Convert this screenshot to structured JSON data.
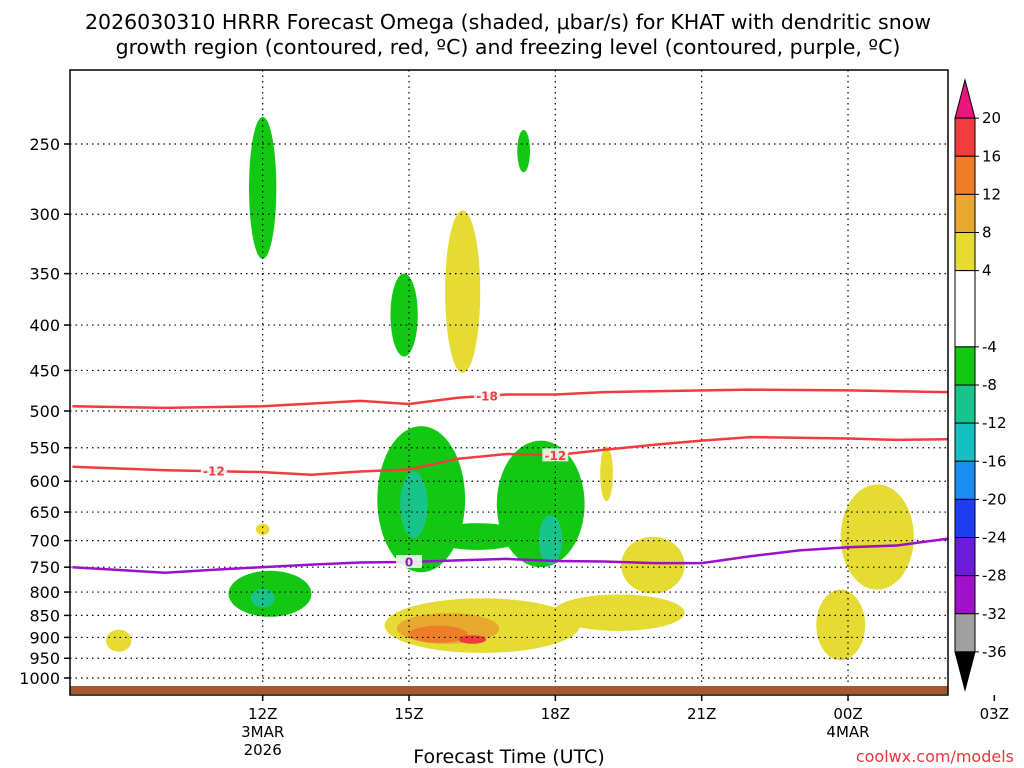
{
  "chart_data": {
    "type": "heatmap",
    "title_line1": "2026030310 HRRR Forecast Omega (shaded, μbar/s) for KHAT with dendritic snow",
    "title_line2": "growth region (contoured, red, ºC) and freezing level (contoured, purple, ºC)",
    "xlabel": "Forecast Time (UTC)",
    "credit": "coolwx.com/models",
    "x_range_hours": [
      -1.95,
      16.05
    ],
    "y_ticks": [
      250,
      300,
      350,
      400,
      450,
      500,
      550,
      600,
      650,
      700,
      750,
      800,
      850,
      900,
      950,
      1000
    ],
    "x_ticks": [
      {
        "hour": 2,
        "label": "12Z",
        "sub1": "3MAR",
        "sub2": "2026"
      },
      {
        "hour": 5,
        "label": "15Z",
        "sub1": "",
        "sub2": ""
      },
      {
        "hour": 8,
        "label": "18Z",
        "sub1": "",
        "sub2": ""
      },
      {
        "hour": 11,
        "label": "21Z",
        "sub1": "",
        "sub2": ""
      },
      {
        "hour": 14,
        "label": "00Z",
        "sub1": "4MAR",
        "sub2": ""
      },
      {
        "hour": 17,
        "label": "03Z",
        "sub1": "",
        "sub2": ""
      }
    ],
    "colorbar": [
      {
        "range": [
          20,
          24
        ],
        "color": "#e8157a"
      },
      {
        "range": [
          16,
          20
        ],
        "color": "#f03c3c"
      },
      {
        "range": [
          12,
          16
        ],
        "color": "#ee7d2a"
      },
      {
        "range": [
          8,
          12
        ],
        "color": "#e8a82e"
      },
      {
        "range": [
          4,
          8
        ],
        "color": "#e6db32"
      },
      {
        "range": [
          -4,
          4
        ],
        "color": "#ffffff"
      },
      {
        "range": [
          -8,
          -4
        ],
        "color": "#12c812"
      },
      {
        "range": [
          -12,
          -8
        ],
        "color": "#19c48c"
      },
      {
        "range": [
          -16,
          -12
        ],
        "color": "#17c0c0"
      },
      {
        "range": [
          -20,
          -16
        ],
        "color": "#1a8ef0"
      },
      {
        "range": [
          -24,
          -20
        ],
        "color": "#1e3cf0"
      },
      {
        "range": [
          -28,
          -24
        ],
        "color": "#6a1cd6"
      },
      {
        "range": [
          -32,
          -28
        ],
        "color": "#a012c8"
      },
      {
        "range": [
          -36,
          -32
        ],
        "color": "#a0a0a0"
      },
      {
        "range": [
          -40,
          -36
        ],
        "color": "#000000"
      }
    ],
    "colorbar_labels": [
      20,
      16,
      12,
      8,
      4,
      -4,
      -8,
      -12,
      -16,
      -20,
      -24,
      -28,
      -32,
      -36
    ],
    "isotherms": [
      {
        "name": "dgz-minus18",
        "label": "-18",
        "color": "#f03c3c",
        "points": [
          [
            -1.9,
            494
          ],
          [
            0,
            496
          ],
          [
            2,
            494
          ],
          [
            4,
            487
          ],
          [
            5,
            491
          ],
          [
            6,
            483
          ],
          [
            7,
            479
          ],
          [
            8,
            479
          ],
          [
            9,
            476
          ],
          [
            10,
            475
          ],
          [
            12,
            473
          ],
          [
            14,
            474
          ],
          [
            16,
            476
          ],
          [
            17,
            475
          ],
          [
            18,
            474
          ]
        ]
      },
      {
        "name": "dgz-minus12",
        "label": "-12",
        "color": "#f03c3c",
        "points": [
          [
            -1.9,
            578
          ],
          [
            0,
            583
          ],
          [
            2,
            586
          ],
          [
            3,
            590
          ],
          [
            4,
            585
          ],
          [
            5,
            582
          ],
          [
            6,
            566
          ],
          [
            7,
            559
          ],
          [
            8,
            561
          ],
          [
            9,
            553
          ],
          [
            10,
            546
          ],
          [
            11,
            540
          ],
          [
            12,
            535
          ],
          [
            14,
            537
          ],
          [
            15,
            539
          ],
          [
            16,
            538
          ],
          [
            17,
            537
          ],
          [
            18,
            537
          ]
        ]
      },
      {
        "name": "freezing-level",
        "label": "0",
        "color": "#9a10cc",
        "points": [
          [
            -1.9,
            750
          ],
          [
            0,
            761
          ],
          [
            1,
            755
          ],
          [
            3,
            745
          ],
          [
            4,
            741
          ],
          [
            5,
            740
          ],
          [
            6,
            737
          ],
          [
            7,
            734
          ],
          [
            8,
            738
          ],
          [
            9,
            739
          ],
          [
            10,
            742
          ],
          [
            11,
            742
          ],
          [
            12,
            729
          ],
          [
            13,
            718
          ],
          [
            14,
            712
          ],
          [
            15,
            709
          ],
          [
            16,
            697
          ],
          [
            17,
            693
          ],
          [
            18,
            693
          ]
        ]
      }
    ],
    "regions": [
      {
        "name": "upward-motion-12z-upper",
        "color": "#12c812",
        "center": [
          2,
          285
        ],
        "half_width_hours": 0.28,
        "half_depth_hpa": 52
      },
      {
        "name": "upward-motion-17z-top",
        "color": "#12c812",
        "center": [
          7.35,
          255
        ],
        "half_width_hours": 0.13,
        "half_depth_hpa": 14
      },
      {
        "name": "upward-motion-15z-upper",
        "color": "#12c812",
        "center": [
          4.9,
          392
        ],
        "half_width_hours": 0.28,
        "half_depth_hpa": 42
      },
      {
        "name": "downward-motion-16z-upper",
        "color": "#e6db32",
        "center": [
          6.1,
          375
        ],
        "half_width_hours": 0.36,
        "half_depth_hpa": 78
      },
      {
        "name": "downward-motion-03z-upper",
        "color": "#e6db32",
        "center": [
          16.95,
          370
        ],
        "half_width_hours": 0.24,
        "half_depth_hpa": 62
      },
      {
        "name": "downward-motion-19z-mid",
        "color": "#e6db32",
        "center": [
          9.05,
          590
        ],
        "half_width_hours": 0.13,
        "half_depth_hpa": 42
      },
      {
        "name": "upward-motion-15z-mid",
        "color": "#12c812",
        "center": [
          5.25,
          640
        ],
        "half_width_hours": 0.9,
        "half_depth_hpa": 120
      },
      {
        "name": "upward-motion-18z-mid",
        "color": "#12c812",
        "center": [
          7.7,
          645
        ],
        "half_width_hours": 0.9,
        "half_depth_hpa": 105
      },
      {
        "name": "upward-motion-16z-bridge",
        "color": "#12c812",
        "center": [
          6.4,
          693
        ],
        "half_width_hours": 1.0,
        "half_depth_hpa": 24
      },
      {
        "name": "upward-motion-15z-core",
        "color": "#19c48c",
        "center": [
          5.1,
          640
        ],
        "half_width_hours": 0.28,
        "half_depth_hpa": 55
      },
      {
        "name": "upward-motion-18z-core",
        "color": "#19c48c",
        "center": [
          7.9,
          700
        ],
        "half_width_hours": 0.24,
        "half_depth_hpa": 45
      },
      {
        "name": "upward-motion-03z-mid",
        "color": "#12c812",
        "center": [
          16.95,
          615
        ],
        "half_width_hours": 0.7,
        "half_depth_hpa": 80
      },
      {
        "name": "upward-motion-03z-core",
        "color": "#19c48c",
        "center": [
          16.95,
          625
        ],
        "half_width_hours": 0.24,
        "half_depth_hpa": 40
      },
      {
        "name": "upward-motion-12z-low",
        "color": "#12c812",
        "center": [
          2.15,
          805
        ],
        "half_width_hours": 0.85,
        "half_depth_hpa": 48
      },
      {
        "name": "upward-motion-12z-core",
        "color": "#19c48c",
        "center": [
          2.0,
          813
        ],
        "half_width_hours": 0.24,
        "half_depth_hpa": 20
      },
      {
        "name": "downward-motion-16z-low",
        "color": "#e6db32",
        "center": [
          6.5,
          875
        ],
        "half_width_hours": 2.0,
        "half_depth_hpa": 62
      },
      {
        "name": "downward-motion-19z-low",
        "color": "#e6db32",
        "center": [
          9.3,
          845
        ],
        "half_width_hours": 1.35,
        "half_depth_hpa": 40
      },
      {
        "name": "downward-motion-20z-col",
        "color": "#e6db32",
        "center": [
          10.0,
          748
        ],
        "half_width_hours": 0.65,
        "half_depth_hpa": 55
      },
      {
        "name": "downward-motion-00z-col",
        "color": "#e6db32",
        "center": [
          14.6,
          700
        ],
        "half_width_hours": 0.75,
        "half_depth_hpa": 95
      },
      {
        "name": "downward-motion-23z-low",
        "color": "#e6db32",
        "center": [
          13.85,
          875
        ],
        "half_width_hours": 0.5,
        "half_depth_hpa": 80
      },
      {
        "name": "downward-motion-15z-low-mod",
        "color": "#e8a82e",
        "center": [
          5.8,
          880
        ],
        "half_width_hours": 1.05,
        "half_depth_hpa": 35
      },
      {
        "name": "downward-motion-15z-low-strong",
        "color": "#ee7d2a",
        "center": [
          5.6,
          893
        ],
        "half_width_hours": 0.6,
        "half_depth_hpa": 20
      },
      {
        "name": "downward-motion-16z-low-max",
        "color": "#f03c3c",
        "center": [
          6.3,
          905
        ],
        "half_width_hours": 0.28,
        "half_depth_hpa": 10
      },
      {
        "name": "downward-motion-03z-low",
        "color": "#e6db32",
        "center": [
          16.95,
          813
        ],
        "half_width_hours": 0.75,
        "half_depth_hpa": 55
      },
      {
        "name": "downward-motion-03z-low-mod",
        "color": "#e8a82e",
        "center": [
          16.95,
          813
        ],
        "half_width_hours": 0.55,
        "half_depth_hpa": 40
      },
      {
        "name": "downward-motion-03z-low-strong",
        "color": "#ee7d2a",
        "center": [
          16.95,
          813
        ],
        "half_width_hours": 0.35,
        "half_depth_hpa": 28
      },
      {
        "name": "downward-motion-03z-low-max",
        "color": "#f03c3c",
        "center": [
          16.95,
          815
        ],
        "half_width_hours": 0.13,
        "half_depth_hpa": 14
      },
      {
        "name": "downward-motion-03z-sfc",
        "color": "#e6db32",
        "center": [
          16.95,
          965
        ],
        "half_width_hours": 0.72,
        "half_depth_hpa": 38
      },
      {
        "name": "downward-motion-03z-sfc-core",
        "color": "#e8a82e",
        "center": [
          16.95,
          968
        ],
        "half_width_hours": 0.28,
        "half_depth_hpa": 15
      },
      {
        "name": "downward-motion-11z-low",
        "color": "#e6db32",
        "center": [
          -0.95,
          908
        ],
        "half_width_hours": 0.26,
        "half_depth_hpa": 26
      },
      {
        "name": "downward-motion-12z-dot",
        "color": "#e6db32",
        "center": [
          2.0,
          680
        ],
        "half_width_hours": 0.14,
        "half_depth_hpa": 10
      }
    ]
  }
}
